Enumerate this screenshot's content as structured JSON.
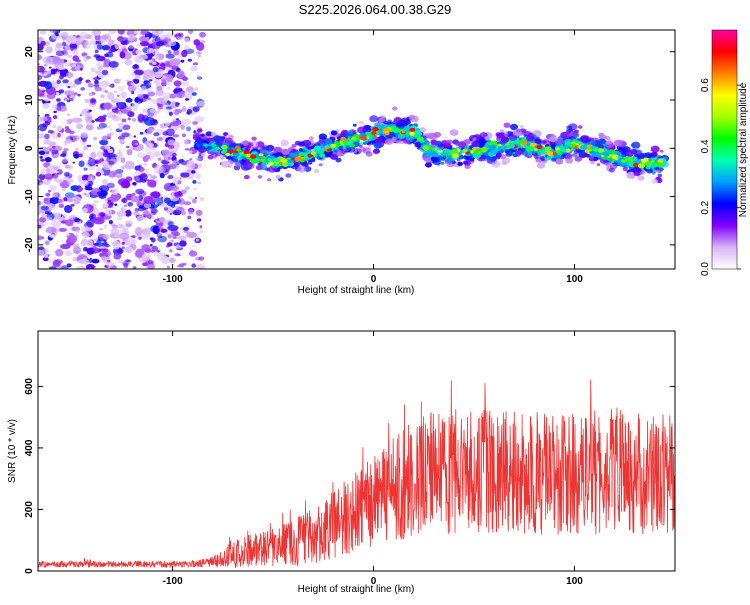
{
  "title": "S225.2026.064.00.38.G29",
  "chart_data": [
    {
      "type": "heatmap",
      "name": "spectrogram",
      "xlabel": "Height of straight line (km)",
      "ylabel": "Frequency (Hz)",
      "xlim": [
        -167,
        150
      ],
      "ylim": [
        -25,
        24.5
      ],
      "xticks": [
        -100,
        0,
        100
      ],
      "xtick_labels": [
        "-100",
        "0",
        "100"
      ],
      "yticks": [
        20,
        10,
        0,
        -10,
        -20
      ],
      "ytick_labels": [
        "20",
        "10",
        "0",
        "-10",
        "-20"
      ],
      "noise_region_x": [
        -167,
        -85
      ],
      "ridge": [
        {
          "x": -88,
          "y": 1
        },
        {
          "x": -75,
          "y": 0
        },
        {
          "x": -60,
          "y": -2
        },
        {
          "x": -45,
          "y": -3
        },
        {
          "x": -30,
          "y": -1
        },
        {
          "x": -15,
          "y": 1
        },
        {
          "x": 0,
          "y": 3
        },
        {
          "x": 10,
          "y": 4
        },
        {
          "x": 20,
          "y": 3
        },
        {
          "x": 30,
          "y": -1
        },
        {
          "x": 45,
          "y": -1
        },
        {
          "x": 60,
          "y": 0
        },
        {
          "x": 75,
          "y": 1
        },
        {
          "x": 90,
          "y": -1
        },
        {
          "x": 100,
          "y": 1
        },
        {
          "x": 115,
          "y": -1
        },
        {
          "x": 130,
          "y": -3
        },
        {
          "x": 145,
          "y": -3
        }
      ],
      "colorbar": {
        "label": "Normalized spectral amplitude",
        "range": [
          0,
          0.78
        ],
        "ticks": [
          0.0,
          0.2,
          0.4,
          0.6
        ],
        "tick_labels": [
          "0.0",
          "0.2",
          "0.4",
          "0.6"
        ],
        "colors": [
          "#ffffff",
          "#d8b4f8",
          "#8000ff",
          "#0000ff",
          "#00a0ff",
          "#00ffb0",
          "#00ff00",
          "#a0ff00",
          "#ffff00",
          "#ff8000",
          "#ff0000",
          "#ff00a0"
        ]
      }
    },
    {
      "type": "line",
      "name": "snr",
      "xlabel": "Height of straight line (km)",
      "ylabel": "SNR (10 * v/v)",
      "xlim": [
        -167,
        150
      ],
      "ylim": [
        0,
        780
      ],
      "xticks": [
        -100,
        0,
        100
      ],
      "xtick_labels": [
        "-100",
        "0",
        "100"
      ],
      "yticks": [
        0,
        200,
        400,
        600
      ],
      "ytick_labels": [
        "0",
        "200",
        "400",
        "600"
      ],
      "color": "#ee3333",
      "envelope": [
        {
          "x": -167,
          "mean": 22,
          "amp": 10
        },
        {
          "x": -90,
          "mean": 22,
          "amp": 10
        },
        {
          "x": -80,
          "mean": 30,
          "amp": 15
        },
        {
          "x": -70,
          "mean": 55,
          "amp": 45
        },
        {
          "x": -55,
          "mean": 75,
          "amp": 60
        },
        {
          "x": -40,
          "mean": 90,
          "amp": 75
        },
        {
          "x": -25,
          "mean": 130,
          "amp": 100
        },
        {
          "x": -10,
          "mean": 190,
          "amp": 130
        },
        {
          "x": 0,
          "mean": 230,
          "amp": 150
        },
        {
          "x": 10,
          "mean": 265,
          "amp": 170
        },
        {
          "x": 20,
          "mean": 300,
          "amp": 190
        },
        {
          "x": 30,
          "mean": 320,
          "amp": 200
        },
        {
          "x": 40,
          "mean": 325,
          "amp": 205
        },
        {
          "x": 60,
          "mean": 320,
          "amp": 200
        },
        {
          "x": 80,
          "mean": 315,
          "amp": 200
        },
        {
          "x": 100,
          "mean": 320,
          "amp": 205
        },
        {
          "x": 120,
          "mean": 330,
          "amp": 210
        },
        {
          "x": 135,
          "mean": 320,
          "amp": 200
        },
        {
          "x": 150,
          "mean": 310,
          "amp": 195
        }
      ]
    }
  ]
}
